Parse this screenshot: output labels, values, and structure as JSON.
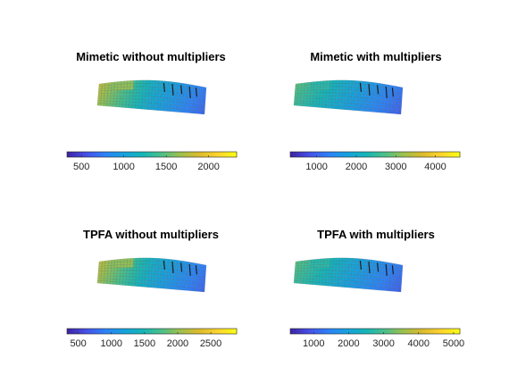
{
  "figure": {
    "colormap": [
      "#3e26a8",
      "#4652e8",
      "#2c82f8",
      "#16a1dd",
      "#14b5b8",
      "#4abf8a",
      "#9ac04f",
      "#d9ba2d",
      "#fbd22f",
      "#f9fb15"
    ],
    "grid_edge_color": "#555555"
  },
  "chart_data": [
    {
      "type": "heatmap",
      "title": "Mimetic without multipliers",
      "colorbar": {
        "min": 330,
        "max": 2330,
        "ticks": [
          500,
          1000,
          1500,
          2000
        ]
      },
      "surface": {
        "left": 0.7,
        "center": 0.38,
        "right": 0.18,
        "block": 0.65
      }
    },
    {
      "type": "heatmap",
      "title": "Mimetic with multipliers",
      "colorbar": {
        "min": 330,
        "max": 4620,
        "ticks": [
          1000,
          2000,
          3000,
          4000
        ]
      },
      "surface": {
        "left": 0.55,
        "center": 0.35,
        "right": 0.17,
        "block": 0.48
      }
    },
    {
      "type": "heatmap",
      "title": "TPFA without multipliers",
      "colorbar": {
        "min": 330,
        "max": 2890,
        "ticks": [
          500,
          1000,
          1500,
          2000,
          2500
        ]
      },
      "surface": {
        "left": 0.7,
        "center": 0.38,
        "right": 0.18,
        "block": 0.65
      }
    },
    {
      "type": "heatmap",
      "title": "TPFA with multipliers",
      "colorbar": {
        "min": 330,
        "max": 5180,
        "ticks": [
          1000,
          2000,
          3000,
          4000,
          5000
        ]
      },
      "surface": {
        "left": 0.55,
        "center": 0.35,
        "right": 0.17,
        "block": 0.48
      }
    }
  ]
}
